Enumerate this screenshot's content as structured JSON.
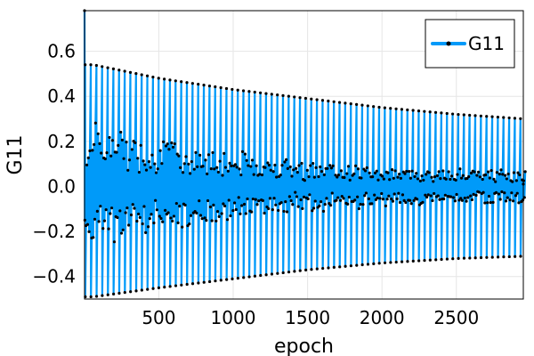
{
  "chart_data": {
    "type": "line",
    "title": "",
    "xlabel": "epoch",
    "ylabel": "G11",
    "xlim": [
      1,
      2950
    ],
    "ylim": [
      -0.5,
      0.78
    ],
    "xticks": [
      500,
      1000,
      1500,
      2000,
      2500
    ],
    "xtick_labels": [
      "500",
      "1000",
      "1500",
      "2000",
      "2500"
    ],
    "yticks": [
      -0.4,
      -0.2,
      0.0,
      0.2,
      0.4,
      0.6
    ],
    "ytick_labels": [
      "−0.4",
      "−0.2",
      "0.0",
      "0.2",
      "0.4",
      "0.6"
    ],
    "grid": true,
    "legend_position": "top-right",
    "colors": {
      "series": "#009AF9",
      "marker": "#000000",
      "frame": "#000000",
      "grid": "#e6e6e6"
    },
    "series": [
      {
        "name": "G11",
        "description_of_values": "oscillating signal (period ~38 epochs) with decaying envelope",
        "x_start": 1,
        "x_end": 2950,
        "initial_peak": 0.78,
        "upper_envelope": {
          "x": [
            60,
            500,
            1000,
            1500,
            2000,
            2500,
            2950
          ],
          "y": [
            0.54,
            0.48,
            0.43,
            0.39,
            0.35,
            0.32,
            0.3
          ]
        },
        "lower_envelope": {
          "x": [
            60,
            500,
            1000,
            1500,
            2000,
            2500,
            2950
          ],
          "y": [
            -0.49,
            -0.45,
            -0.41,
            -0.37,
            -0.34,
            -0.32,
            -0.31
          ]
        },
        "inner_band": {
          "x": [
            1,
            500,
            1000,
            1500,
            2000,
            2500,
            2950
          ],
          "y": [
            0.2,
            0.15,
            0.11,
            0.08,
            0.06,
            0.055,
            0.05
          ]
        },
        "oscillation_period": 38
      }
    ]
  }
}
